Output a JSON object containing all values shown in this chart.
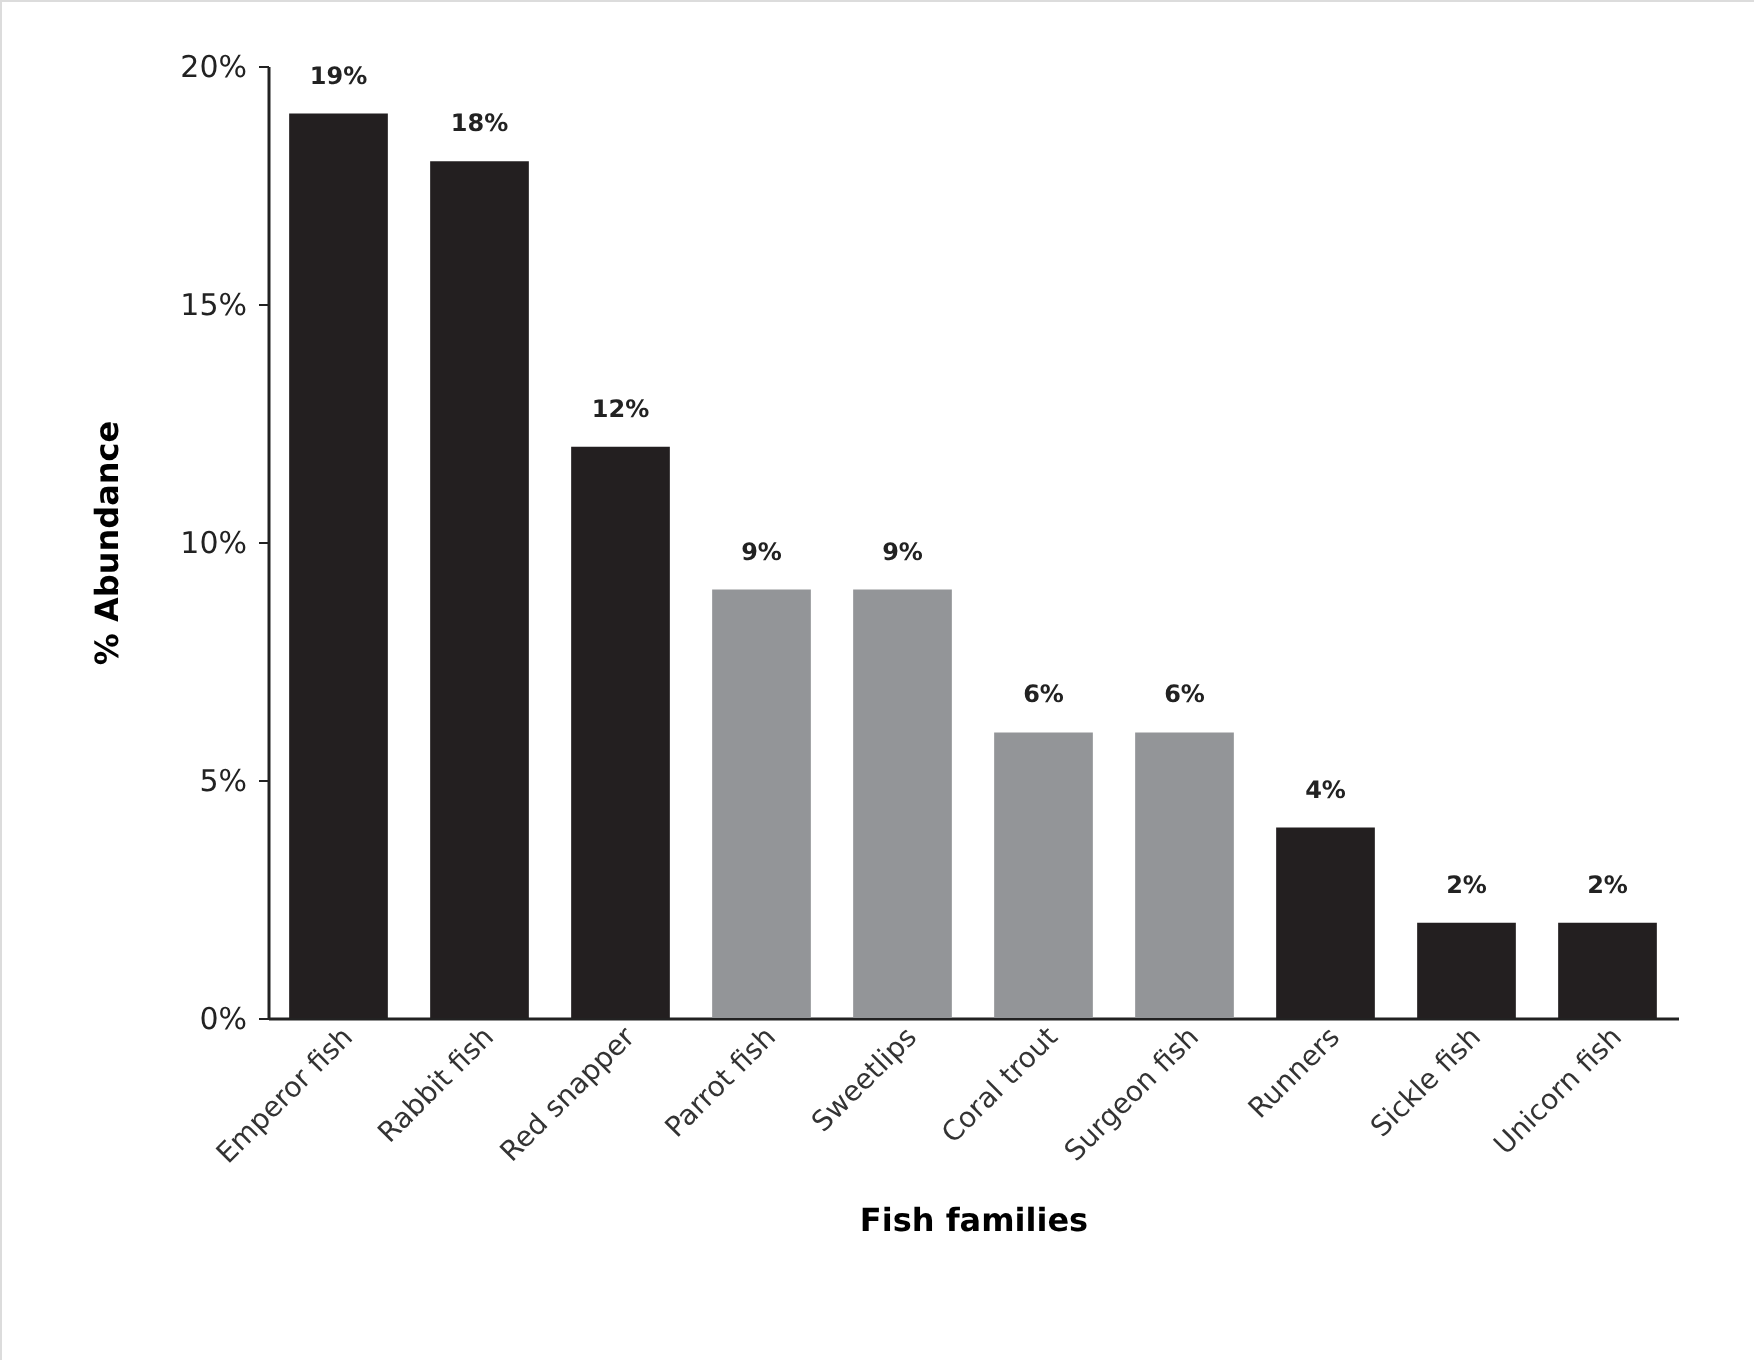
{
  "chart_data": {
    "type": "bar",
    "xlabel": "Fish families",
    "ylabel": "% Abundance",
    "categories": [
      "Emperor fish",
      "Rabbit fish",
      "Red snapper",
      "Parrot fish",
      "Sweetlips",
      "Coral trout",
      "Surgeon fish",
      "Runners",
      "Sickle fish",
      "Unicorn fish"
    ],
    "values": [
      19,
      18,
      12,
      9,
      9,
      6,
      6,
      4,
      2,
      2
    ],
    "colors": [
      "#231f20",
      "#231f20",
      "#231f20",
      "#939598",
      "#939598",
      "#939598",
      "#939598",
      "#231f20",
      "#231f20",
      "#231f20"
    ],
    "value_labels": [
      "19%",
      "18%",
      "12%",
      "9%",
      "9%",
      "6%",
      "6%",
      "4%",
      "2%",
      "2%"
    ],
    "ylim": [
      0,
      20
    ],
    "yticks": [
      {
        "value": 0,
        "label": "0%"
      },
      {
        "value": 5,
        "label": "5%"
      },
      {
        "value": 10,
        "label": "10%"
      },
      {
        "value": 15,
        "label": "15%"
      },
      {
        "value": 20,
        "label": "20%"
      }
    ],
    "grid": false
  }
}
